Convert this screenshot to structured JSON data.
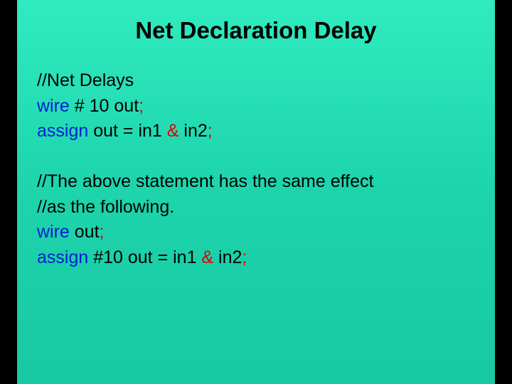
{
  "title": "Net Declaration Delay",
  "code": {
    "l1_comment": "//Net Delays",
    "l2_kw": "wire",
    "l2_rest": " # 10 out",
    "l2_semi": ";",
    "l3_kw": "assign",
    "l3_a": " out = in1 ",
    "l3_op": "&",
    "l3_b": " in2",
    "l3_semi": ";",
    "l4_comment_a": "//The above statement has the same effect",
    "l4_comment_b": "//as the following.",
    "l5_kw": "wire",
    "l5_rest": " out",
    "l5_semi": ";",
    "l6_kw": "assign",
    "l6_a": " #10 out = in1 ",
    "l6_op": "&",
    "l6_b": " in2",
    "l6_semi": ";"
  },
  "colors": {
    "background_top": "#30ebc0",
    "background_bottom": "#18c9a3",
    "letterbox": "#000000",
    "text": "#000000",
    "keyword": "#0020d0",
    "operator": "#e00000"
  },
  "typography": {
    "title_fontsize": 33,
    "title_weight": "bold",
    "code_fontsize": 25,
    "font_family": "Arial"
  },
  "layout": {
    "slide_width": 672,
    "slide_height": 540,
    "letterbox_side": 24
  }
}
